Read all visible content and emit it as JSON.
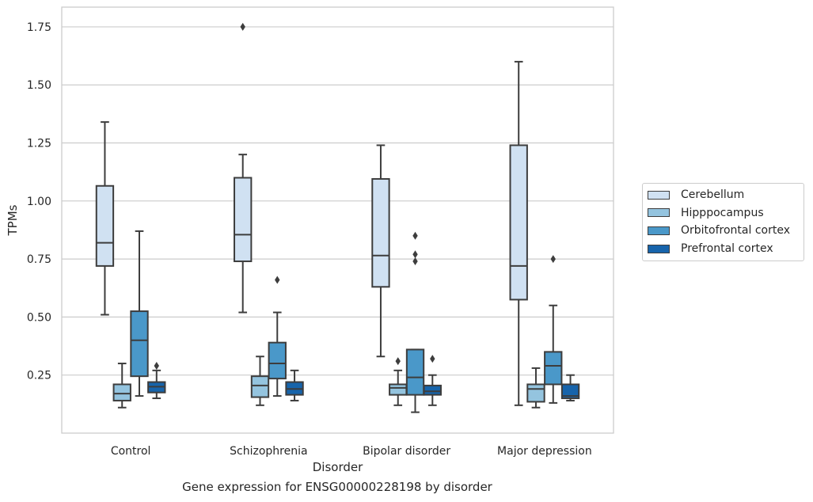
{
  "chart_data": {
    "type": "boxplot",
    "xlabel": "Disorder",
    "ylabel": "TPMs",
    "caption": "Gene expression for ENSG00000228198 by disorder",
    "ylim": [
      0.0,
      1.835
    ],
    "yticks": [
      "0.25",
      "0.50",
      "0.75",
      "1.00",
      "1.25",
      "1.50",
      "1.75"
    ],
    "grid": true,
    "legend_position": "right",
    "categories": [
      "Control",
      "Schizophrenia",
      "Bipolar disorder",
      "Major depression"
    ],
    "series": [
      {
        "name": "Cerebellum",
        "color": "#d0e1f2",
        "boxes": [
          {
            "whisker_low": 0.51,
            "q1": 0.72,
            "median": 0.82,
            "q3": 1.065,
            "whisker_high": 1.34,
            "outliers": []
          },
          {
            "whisker_low": 0.52,
            "q1": 0.74,
            "median": 0.855,
            "q3": 1.1,
            "whisker_high": 1.2,
            "outliers": [
              1.75
            ]
          },
          {
            "whisker_low": 0.33,
            "q1": 0.63,
            "median": 0.765,
            "q3": 1.095,
            "whisker_high": 1.24,
            "outliers": []
          },
          {
            "whisker_low": 0.12,
            "q1": 0.575,
            "median": 0.72,
            "q3": 1.24,
            "whisker_high": 1.6,
            "outliers": []
          }
        ]
      },
      {
        "name": "Hipppocampus",
        "color": "#94c4df",
        "boxes": [
          {
            "whisker_low": 0.11,
            "q1": 0.14,
            "median": 0.17,
            "q3": 0.21,
            "whisker_high": 0.3,
            "outliers": []
          },
          {
            "whisker_low": 0.12,
            "q1": 0.155,
            "median": 0.205,
            "q3": 0.245,
            "whisker_high": 0.33,
            "outliers": []
          },
          {
            "whisker_low": 0.12,
            "q1": 0.165,
            "median": 0.195,
            "q3": 0.21,
            "whisker_high": 0.27,
            "outliers": [
              0.31
            ]
          },
          {
            "whisker_low": 0.11,
            "q1": 0.135,
            "median": 0.19,
            "q3": 0.21,
            "whisker_high": 0.28,
            "outliers": []
          }
        ]
      },
      {
        "name": "Orbitofrontal cortex",
        "color": "#4a98c9",
        "boxes": [
          {
            "whisker_low": 0.16,
            "q1": 0.245,
            "median": 0.4,
            "q3": 0.525,
            "whisker_high": 0.87,
            "outliers": []
          },
          {
            "whisker_low": 0.16,
            "q1": 0.235,
            "median": 0.3,
            "q3": 0.39,
            "whisker_high": 0.52,
            "outliers": [
              0.66
            ]
          },
          {
            "whisker_low": 0.09,
            "q1": 0.165,
            "median": 0.24,
            "q3": 0.36,
            "whisker_high": 0.36,
            "outliers": [
              0.74,
              0.77,
              0.85
            ]
          },
          {
            "whisker_low": 0.13,
            "q1": 0.21,
            "median": 0.29,
            "q3": 0.35,
            "whisker_high": 0.55,
            "outliers": [
              0.75
            ]
          }
        ]
      },
      {
        "name": "Prefrontal cortex",
        "color": "#1764ab",
        "boxes": [
          {
            "whisker_low": 0.15,
            "q1": 0.175,
            "median": 0.2,
            "q3": 0.22,
            "whisker_high": 0.27,
            "outliers": [
              0.29
            ]
          },
          {
            "whisker_low": 0.14,
            "q1": 0.165,
            "median": 0.19,
            "q3": 0.22,
            "whisker_high": 0.27,
            "outliers": []
          },
          {
            "whisker_low": 0.12,
            "q1": 0.165,
            "median": 0.18,
            "q3": 0.205,
            "whisker_high": 0.25,
            "outliers": [
              0.32
            ]
          },
          {
            "whisker_low": 0.14,
            "q1": 0.15,
            "median": 0.16,
            "q3": 0.21,
            "whisker_high": 0.25,
            "outliers": []
          }
        ]
      }
    ]
  }
}
